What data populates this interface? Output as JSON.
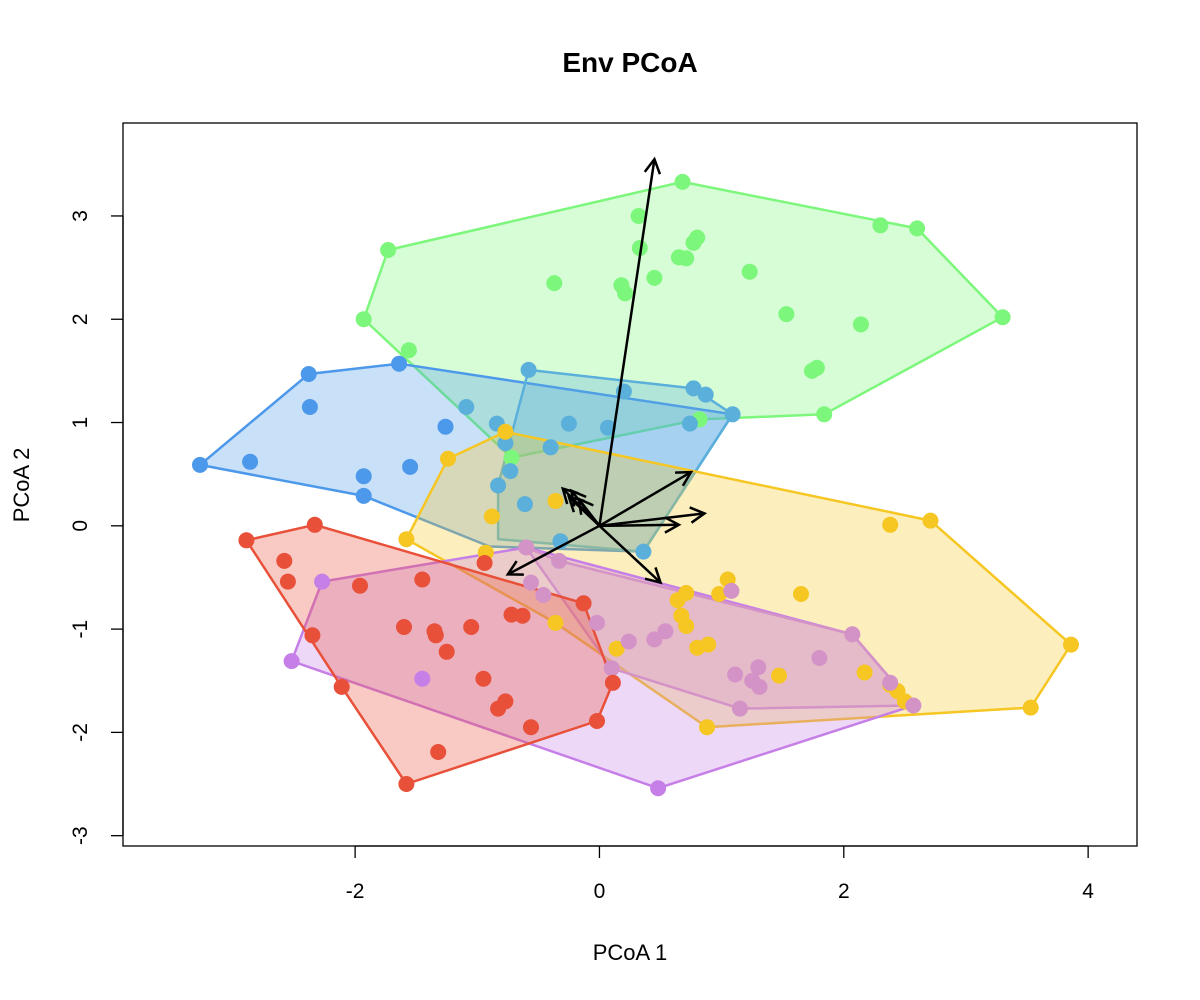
{
  "chart_data": {
    "type": "scatter",
    "title": "Env PCoA",
    "xlabel": "PCoA 1",
    "ylabel": "PCoA 2",
    "xlim": [
      -3.9,
      4.4
    ],
    "ylim": [
      -3.1,
      3.9
    ],
    "x_ticks": [
      -2,
      0,
      2,
      4
    ],
    "y_ticks": [
      -3,
      -2,
      -1,
      0,
      1,
      2,
      3
    ],
    "grid": false,
    "legend": "none",
    "series": [
      {
        "color": "#7CF77C",
        "hull": [
          [
            0.68,
            3.33
          ],
          [
            2.6,
            2.88
          ],
          [
            3.3,
            2.02
          ],
          [
            1.84,
            1.08
          ],
          [
            0.82,
            1.03
          ],
          [
            -0.72,
            0.66
          ],
          [
            -1.93,
            2.0
          ],
          [
            -1.73,
            2.67
          ]
        ],
        "points": [
          [
            0.68,
            3.33
          ],
          [
            0.32,
            3.0
          ],
          [
            0.8,
            2.79
          ],
          [
            0.77,
            2.74
          ],
          [
            0.33,
            2.69
          ],
          [
            0.65,
            2.6
          ],
          [
            0.71,
            2.59
          ],
          [
            -1.73,
            2.67
          ],
          [
            2.3,
            2.91
          ],
          [
            2.6,
            2.88
          ],
          [
            1.23,
            2.46
          ],
          [
            0.45,
            2.4
          ],
          [
            0.18,
            2.33
          ],
          [
            0.21,
            2.25
          ],
          [
            -0.37,
            2.35
          ],
          [
            -1.93,
            2.0
          ],
          [
            1.53,
            2.05
          ],
          [
            2.14,
            1.95
          ],
          [
            3.3,
            2.02
          ],
          [
            1.74,
            1.5
          ],
          [
            1.78,
            1.53
          ],
          [
            -1.56,
            1.7
          ],
          [
            1.84,
            1.08
          ],
          [
            0.82,
            1.03
          ],
          [
            -0.72,
            0.66
          ]
        ]
      },
      {
        "color": "#4C98EA",
        "hull": [
          [
            -1.64,
            1.57
          ],
          [
            1.09,
            1.08
          ],
          [
            0.36,
            -0.25
          ],
          [
            -0.9,
            -0.2
          ],
          [
            -1.93,
            0.29
          ],
          [
            -3.27,
            0.59
          ],
          [
            -2.38,
            1.47
          ]
        ],
        "points": [
          [
            -2.38,
            1.47
          ],
          [
            -2.37,
            1.15
          ],
          [
            -1.64,
            1.57
          ],
          [
            -1.26,
            0.96
          ],
          [
            -3.27,
            0.59
          ],
          [
            -2.86,
            0.62
          ],
          [
            -1.93,
            0.48
          ],
          [
            -1.55,
            0.57
          ],
          [
            -1.93,
            0.29
          ]
        ]
      },
      {
        "color": "#5AB0DA",
        "hull": [
          [
            -0.58,
            1.51
          ],
          [
            0.77,
            1.33
          ],
          [
            1.09,
            1.08
          ],
          [
            0.36,
            -0.25
          ],
          [
            -0.83,
            -0.13
          ],
          [
            -0.83,
            0.39
          ]
        ],
        "points": [
          [
            -0.58,
            1.51
          ],
          [
            0.77,
            1.33
          ],
          [
            0.87,
            1.27
          ],
          [
            0.2,
            1.3
          ],
          [
            1.09,
            1.08
          ],
          [
            -1.09,
            1.15
          ],
          [
            -0.84,
            0.99
          ],
          [
            -0.25,
            0.99
          ],
          [
            0.07,
            0.95
          ],
          [
            0.74,
            0.99
          ],
          [
            -0.77,
            0.8
          ],
          [
            -0.4,
            0.76
          ],
          [
            -0.73,
            0.53
          ],
          [
            -0.83,
            0.39
          ],
          [
            -0.61,
            0.21
          ],
          [
            -0.32,
            -0.15
          ],
          [
            0.36,
            -0.25
          ]
        ]
      },
      {
        "color": "#F6C623",
        "hull": [
          [
            -0.77,
            0.91
          ],
          [
            2.71,
            0.05
          ],
          [
            3.86,
            -1.15
          ],
          [
            3.53,
            -1.76
          ],
          [
            0.88,
            -1.95
          ],
          [
            -0.36,
            -0.94
          ],
          [
            -1.58,
            -0.13
          ],
          [
            -1.24,
            0.65
          ]
        ],
        "points": [
          [
            -0.77,
            0.91
          ],
          [
            -1.24,
            0.65
          ],
          [
            -0.36,
            0.24
          ],
          [
            -0.88,
            0.09
          ],
          [
            2.38,
            0.01
          ],
          [
            2.71,
            0.05
          ],
          [
            -1.58,
            -0.13
          ],
          [
            -0.93,
            -0.26
          ],
          [
            1.05,
            -0.52
          ],
          [
            0.71,
            -0.65
          ],
          [
            0.64,
            -0.72
          ],
          [
            1.65,
            -0.66
          ],
          [
            0.98,
            -0.66
          ],
          [
            0.67,
            -0.87
          ],
          [
            0.71,
            -0.97
          ],
          [
            -0.36,
            -0.94
          ],
          [
            0.14,
            -1.19
          ],
          [
            0.8,
            -1.18
          ],
          [
            0.89,
            -1.15
          ],
          [
            1.47,
            -1.45
          ],
          [
            2.17,
            -1.42
          ],
          [
            2.38,
            -1.54
          ],
          [
            2.44,
            -1.6
          ],
          [
            2.5,
            -1.7
          ],
          [
            3.86,
            -1.15
          ],
          [
            3.53,
            -1.76
          ],
          [
            0.88,
            -1.95
          ]
        ]
      },
      {
        "color": "#C77FE8",
        "hull": [
          [
            -0.6,
            -0.21
          ],
          [
            2.07,
            -1.05
          ],
          [
            2.57,
            -1.74
          ],
          [
            0.48,
            -2.54
          ],
          [
            -2.52,
            -1.31
          ],
          [
            -2.27,
            -0.54
          ]
        ],
        "points": [
          [
            -2.27,
            -0.54
          ],
          [
            -2.52,
            -1.31
          ],
          [
            -1.45,
            -1.48
          ],
          [
            0.48,
            -2.54
          ]
        ]
      },
      {
        "color": "#D493C7",
        "hull": [
          [
            -0.6,
            -0.21
          ],
          [
            -0.33,
            -0.34
          ],
          [
            2.07,
            -1.05
          ],
          [
            2.57,
            -1.74
          ],
          [
            1.15,
            -1.77
          ],
          [
            0.1,
            -1.38
          ]
        ],
        "points": [
          [
            -0.6,
            -0.21
          ],
          [
            -0.33,
            -0.34
          ],
          [
            -0.56,
            -0.55
          ],
          [
            -0.46,
            -0.67
          ],
          [
            1.08,
            -0.63
          ],
          [
            -0.02,
            -0.94
          ],
          [
            0.24,
            -1.12
          ],
          [
            0.54,
            -1.02
          ],
          [
            0.45,
            -1.1
          ],
          [
            2.07,
            -1.05
          ],
          [
            1.3,
            -1.37
          ],
          [
            1.8,
            -1.28
          ],
          [
            1.11,
            -1.44
          ],
          [
            1.25,
            -1.5
          ],
          [
            1.31,
            -1.56
          ],
          [
            0.1,
            -1.38
          ],
          [
            2.38,
            -1.52
          ],
          [
            1.15,
            -1.77
          ],
          [
            2.57,
            -1.74
          ]
        ]
      },
      {
        "color": "#E85039",
        "hull": [
          [
            -2.33,
            0.01
          ],
          [
            -0.13,
            -0.75
          ],
          [
            0.11,
            -1.52
          ],
          [
            -0.02,
            -1.89
          ],
          [
            -1.58,
            -2.5
          ],
          [
            -2.11,
            -1.56
          ],
          [
            -2.89,
            -0.14
          ]
        ],
        "points": [
          [
            -2.33,
            0.01
          ],
          [
            -2.89,
            -0.14
          ],
          [
            -2.58,
            -0.34
          ],
          [
            -2.55,
            -0.54
          ],
          [
            -1.45,
            -0.52
          ],
          [
            -1.96,
            -0.58
          ],
          [
            -0.94,
            -0.36
          ],
          [
            -0.13,
            -0.75
          ],
          [
            -0.72,
            -0.86
          ],
          [
            -0.63,
            -0.87
          ],
          [
            -1.6,
            -0.98
          ],
          [
            -1.35,
            -1.02
          ],
          [
            -1.34,
            -1.06
          ],
          [
            -1.05,
            -0.98
          ],
          [
            -2.35,
            -1.06
          ],
          [
            -1.25,
            -1.22
          ],
          [
            -0.95,
            -1.48
          ],
          [
            0.11,
            -1.52
          ],
          [
            -2.11,
            -1.56
          ],
          [
            -0.77,
            -1.7
          ],
          [
            -0.83,
            -1.77
          ],
          [
            -0.56,
            -1.95
          ],
          [
            -0.02,
            -1.89
          ],
          [
            -1.32,
            -2.19
          ],
          [
            -1.58,
            -2.5
          ]
        ]
      }
    ],
    "arrows": [
      [
        0.45,
        3.55
      ],
      [
        0.75,
        0.52
      ],
      [
        0.86,
        0.12
      ],
      [
        0.65,
        0.01
      ],
      [
        0.5,
        -0.55
      ],
      [
        -0.75,
        -0.47
      ],
      [
        -0.3,
        0.36
      ],
      [
        -0.23,
        0.34
      ],
      [
        -0.17,
        0.26
      ],
      [
        -0.25,
        0.28
      ]
    ]
  }
}
